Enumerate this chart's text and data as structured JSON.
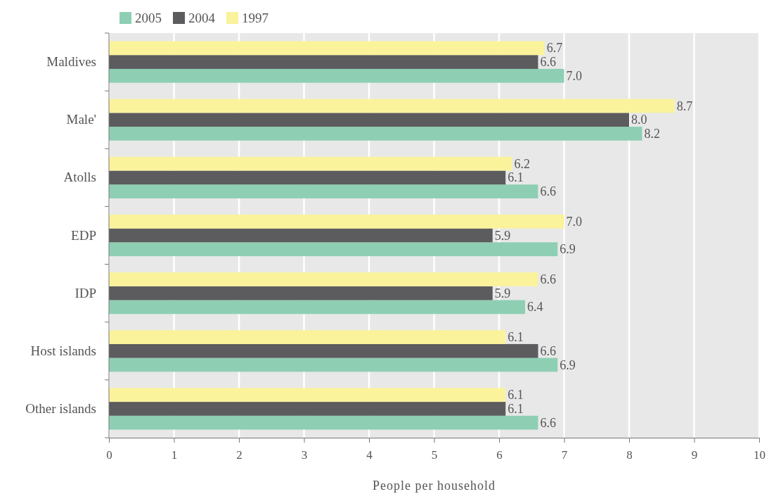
{
  "chart_data": {
    "type": "bar",
    "orientation": "horizontal",
    "xlabel": "People per household",
    "categories": [
      "Maldives",
      "Male'",
      "Atolls",
      "EDP",
      "IDP",
      "Host islands",
      "Other islands"
    ],
    "series": [
      {
        "name": "2005",
        "color": "#8ecfb4",
        "values": [
          7.0,
          8.2,
          6.6,
          6.9,
          6.4,
          6.9,
          6.6
        ],
        "value_labels": [
          "7.0",
          "8.2",
          "6.6",
          "6.9",
          "6.4",
          "6.9",
          "6.6"
        ]
      },
      {
        "name": "2004",
        "color": "#5c5c5e",
        "values": [
          6.6,
          8.0,
          6.1,
          5.9,
          5.9,
          6.6,
          6.1
        ],
        "value_labels": [
          "6.6",
          "8.0",
          "6.1",
          "5.9",
          "5.9",
          "6.6",
          "6.1"
        ]
      },
      {
        "name": "1997",
        "color": "#faf39c",
        "values": [
          6.7,
          8.7,
          6.2,
          7.0,
          6.6,
          6.1,
          6.1
        ],
        "value_labels": [
          "6.7",
          "8.7",
          "6.2",
          "7.0",
          "6.6",
          "6.1",
          "6.1"
        ]
      }
    ],
    "xlim": [
      0,
      10
    ],
    "xticks": [
      0,
      1,
      2,
      3,
      4,
      5,
      6,
      7,
      8,
      9,
      10
    ],
    "grid": "x",
    "legend": "top left"
  }
}
